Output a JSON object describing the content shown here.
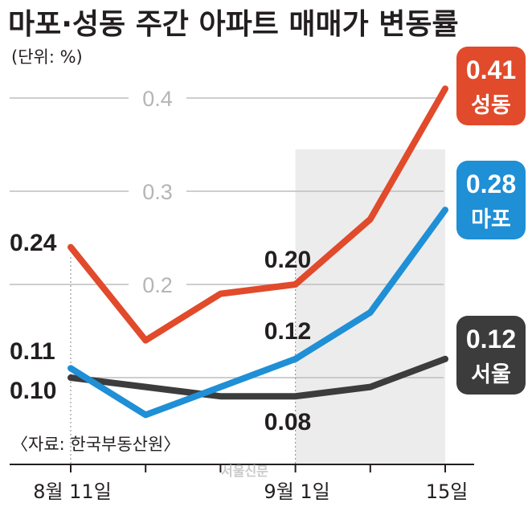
{
  "header": {
    "title": "마포·성동 주간 아파트 매매가 변동률",
    "unit": "(단위: %)"
  },
  "footer": {
    "source": "〈자료: 한국부동산원〉",
    "watermark": "서울신문"
  },
  "chart_data": {
    "type": "line",
    "x_positions": 6,
    "x_tick_labels": [
      {
        "index": 0,
        "label": "8월 11일"
      },
      {
        "index": 3,
        "label": "9월 1일"
      },
      {
        "index": 5,
        "label": "15일"
      }
    ],
    "y_ticks": [
      "0.4",
      "0.3",
      "0.2"
    ],
    "y_tick_values": [
      0.4,
      0.3,
      0.2
    ],
    "ylim": [
      0.05,
      0.45
    ],
    "highlight_range": [
      3,
      5
    ],
    "series": [
      {
        "name": "성동",
        "color": "#e14a2b",
        "values": [
          0.24,
          0.14,
          0.19,
          0.2,
          0.27,
          0.41
        ],
        "latest_label": "0.41"
      },
      {
        "name": "마포",
        "color": "#1f8fd6",
        "values": [
          0.11,
          0.06,
          0.09,
          0.12,
          0.17,
          0.28
        ],
        "latest_label": "0.28"
      },
      {
        "name": "서울",
        "color": "#3c3c3c",
        "values": [
          0.1,
          0.09,
          0.08,
          0.08,
          0.09,
          0.12
        ],
        "latest_label": "0.12"
      }
    ],
    "data_labels": [
      {
        "series": 0,
        "index": 0,
        "text": "0.24"
      },
      {
        "series": 1,
        "index": 0,
        "text": "0.11"
      },
      {
        "series": 2,
        "index": 0,
        "text": "0.10"
      },
      {
        "series": 0,
        "index": 3,
        "text": "0.20"
      },
      {
        "series": 1,
        "index": 3,
        "text": "0.12"
      },
      {
        "series": 2,
        "index": 3,
        "text": "0.08"
      }
    ]
  }
}
